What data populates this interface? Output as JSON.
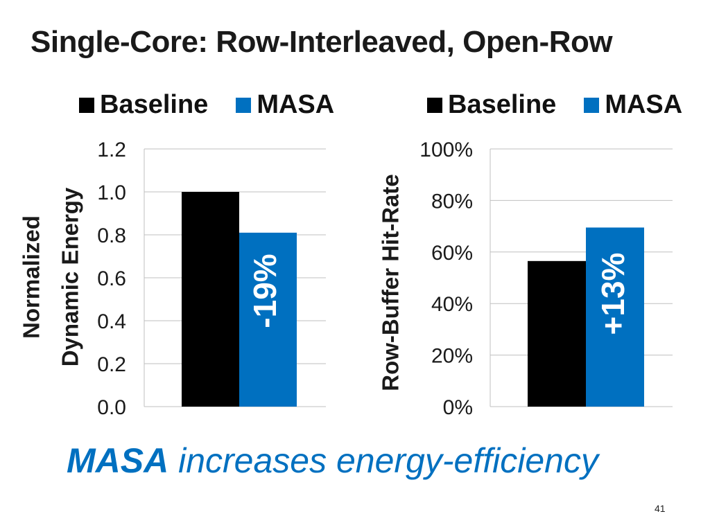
{
  "slide": {
    "title": "Single-Core: Row-Interleaved, Open-Row",
    "tagline_strong": "MASA",
    "tagline_rest": " increases energy-efficiency",
    "page_number": "41"
  },
  "colors": {
    "baseline": "#000000",
    "masa": "#0070c0",
    "grid": "#bfbfbf",
    "text": "#1a1a1a"
  },
  "chart_data": [
    {
      "type": "bar",
      "legend": [
        "Baseline",
        "MASA"
      ],
      "series": [
        {
          "name": "Baseline",
          "values": [
            1.0
          ]
        },
        {
          "name": "MASA",
          "values": [
            0.81
          ]
        }
      ],
      "categories": [
        ""
      ],
      "ylabel_lines": [
        "Normalized",
        "Dynamic Energy"
      ],
      "ylim": [
        0,
        1.2
      ],
      "yticks": [
        0.0,
        0.2,
        0.4,
        0.6,
        0.8,
        1.0,
        1.2
      ],
      "ytick_labels": [
        "0.0",
        "0.2",
        "0.4",
        "0.6",
        "0.8",
        "1.0",
        "1.2"
      ],
      "annotation": "-19%",
      "grid": true
    },
    {
      "type": "bar",
      "legend": [
        "Baseline",
        "MASA"
      ],
      "series": [
        {
          "name": "Baseline",
          "values": [
            56.5
          ]
        },
        {
          "name": "MASA",
          "values": [
            69.5
          ]
        }
      ],
      "categories": [
        ""
      ],
      "ylabel_lines": [
        "Row-Buffer Hit-Rate"
      ],
      "ylim": [
        0,
        100
      ],
      "yticks": [
        0,
        20,
        40,
        60,
        80,
        100
      ],
      "ytick_labels": [
        "0%",
        "20%",
        "40%",
        "60%",
        "80%",
        "100%"
      ],
      "annotation": "+13%",
      "grid": true
    }
  ]
}
